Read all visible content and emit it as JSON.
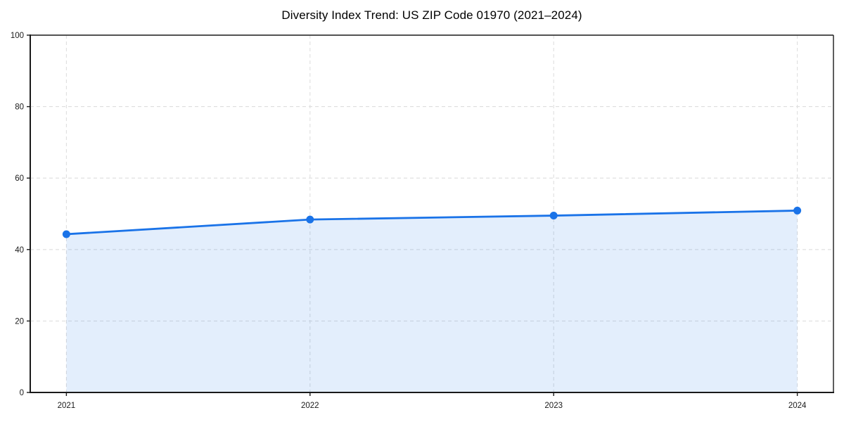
{
  "title": "Diversity Index Trend: US ZIP Code 01970 (2021–2024)",
  "colors": {
    "line": "#1a73e8",
    "marker": "#1a73e8",
    "fill": "rgba(26,115,232,0.12)",
    "grid": "#dedede",
    "spine": "#1a1a1a",
    "tick_text": "#1a1a1a",
    "background": "#ffffff"
  },
  "chart_data": {
    "type": "area",
    "x": [
      "2021",
      "2022",
      "2023",
      "2024"
    ],
    "values": [
      44.3,
      48.4,
      49.5,
      50.9
    ],
    "title": "Diversity Index Trend: US ZIP Code 01970 (2021–2024)",
    "xlabel": "",
    "ylabel": "",
    "ylim": [
      0,
      100
    ],
    "yticks": [
      0,
      20,
      40,
      60,
      80,
      100
    ],
    "xticks": [
      "2021",
      "2022",
      "2023",
      "2024"
    ],
    "grid": true,
    "grid_style": "dashed",
    "legend": "none",
    "marker": "circle",
    "line_width": 2.8,
    "marker_radius": 5.5
  }
}
